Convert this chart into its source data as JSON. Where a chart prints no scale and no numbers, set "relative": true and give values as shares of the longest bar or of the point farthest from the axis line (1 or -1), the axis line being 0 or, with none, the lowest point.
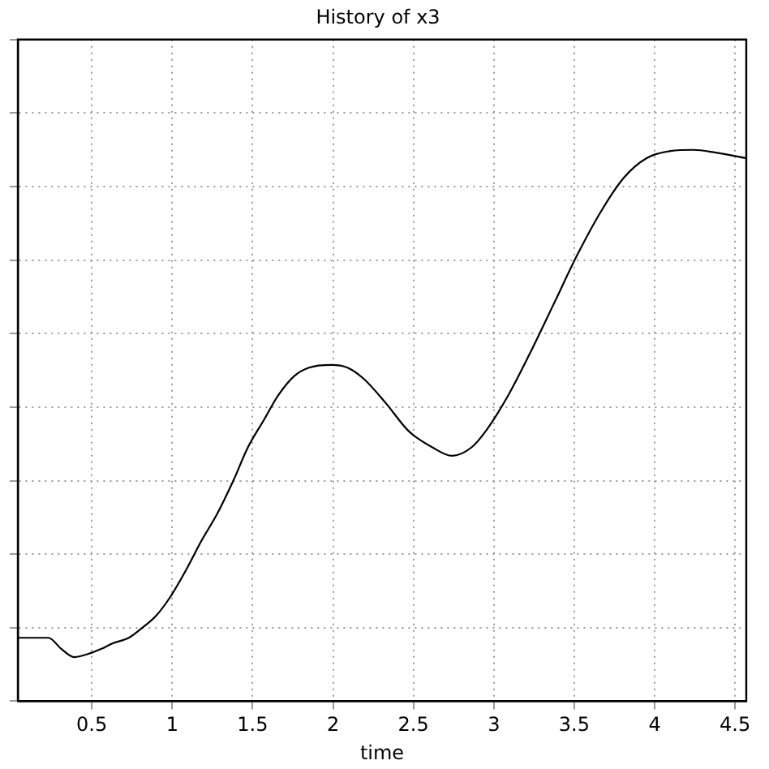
{
  "chart_data": {
    "type": "line",
    "title": "History of x3",
    "xlabel": "time",
    "relative": true,
    "grid": true,
    "legend": false,
    "marker": "none",
    "line_style": "solid",
    "xlim": [
      0.04,
      4.57
    ],
    "xticks": [
      0.5,
      1,
      1.5,
      2,
      2.5,
      3,
      3.5,
      4,
      4.5
    ],
    "series": [
      {
        "color": "#000000",
        "x": [
          0.04,
          0.23,
          0.31,
          0.39,
          0.5,
          0.56,
          0.63,
          0.73,
          0.8,
          0.9,
          0.99,
          1.09,
          1.18,
          1.28,
          1.38,
          1.47,
          1.57,
          1.66,
          1.76,
          1.85,
          1.99,
          2.09,
          2.19,
          2.33,
          2.47,
          2.62,
          2.74,
          2.86,
          2.95,
          3.09,
          3.24,
          3.38,
          3.52,
          3.67,
          3.81,
          3.95,
          4.1,
          4.24,
          4.38,
          4.57
        ],
        "values": [
          0.115,
          0.115,
          0.095,
          0.08,
          0.088,
          0.095,
          0.105,
          0.115,
          0.13,
          0.155,
          0.19,
          0.24,
          0.29,
          0.34,
          0.4,
          0.46,
          0.51,
          0.555,
          0.59,
          0.605,
          0.61,
          0.605,
          0.585,
          0.54,
          0.49,
          0.46,
          0.445,
          0.46,
          0.49,
          0.555,
          0.64,
          0.725,
          0.81,
          0.89,
          0.95,
          0.985,
          0.998,
          1,
          0.995,
          0.985
        ]
      }
    ]
  }
}
